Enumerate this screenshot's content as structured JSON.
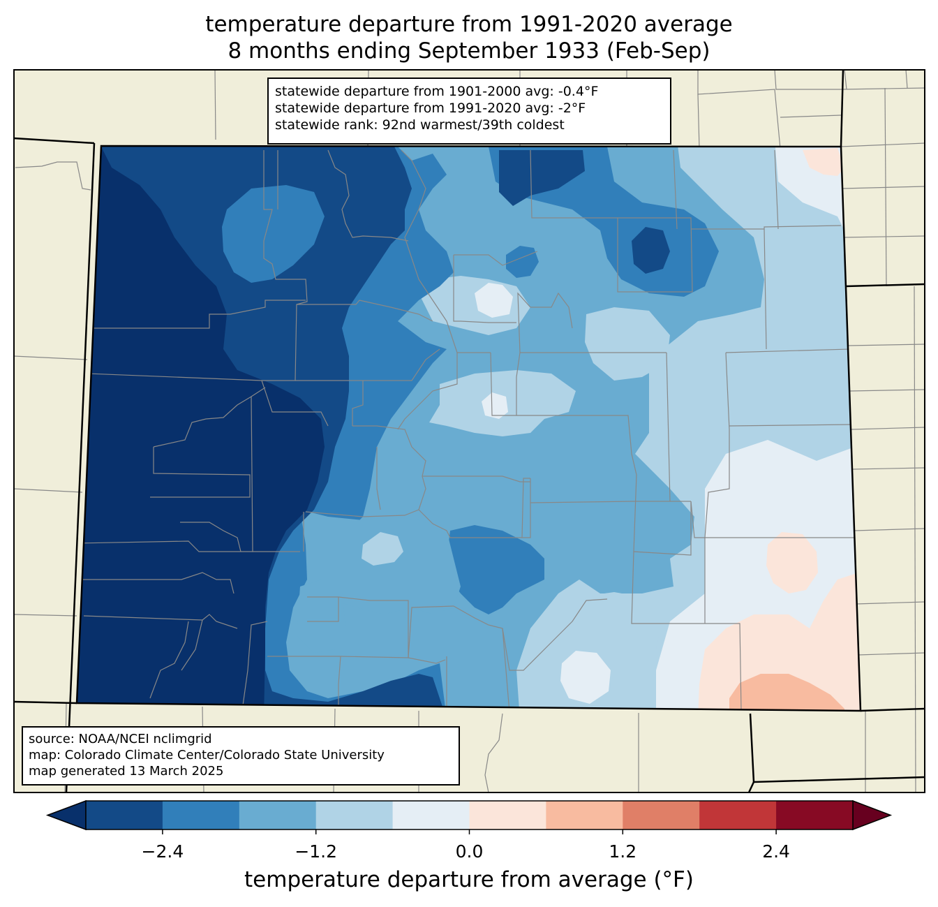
{
  "title": {
    "line1": "temperature departure from 1991-2020 average",
    "line2": "8 months ending September 1933 (Feb-Sep)"
  },
  "stats": {
    "line1": "statewide departure from 1901-2000 avg: -0.4°F",
    "line2": "statewide departure from 1991-2020 avg: -2°F",
    "line3": "statewide rank: 92nd warmest/39th coldest"
  },
  "source": {
    "line1": "source: NOAA/NCEI nclimgrid",
    "line2": "map: Colorado Climate Center/Colorado State University",
    "line3": "map generated 13 March 2025"
  },
  "colorbar": {
    "label": "temperature departure from average (°F)",
    "ticks": [
      "−2.4",
      "−1.2",
      "0.0",
      "1.2",
      "2.4"
    ],
    "tick_values": [
      -2.4,
      -1.2,
      0.0,
      1.2,
      2.4
    ],
    "range": [
      -3.0,
      3.0
    ],
    "step": 0.6,
    "colors": [
      "#08306b",
      "#134a87",
      "#317fba",
      "#69acd1",
      "#b0d3e6",
      "#e5eef5",
      "#fbe5da",
      "#f8bba0",
      "#e07f67",
      "#c13638",
      "#870a24",
      "#67001f"
    ],
    "extend": "both"
  },
  "legend_colors": {
    "land": "#f0eeda",
    "county_lines": "#888888",
    "state_lines": "#000000"
  }
}
